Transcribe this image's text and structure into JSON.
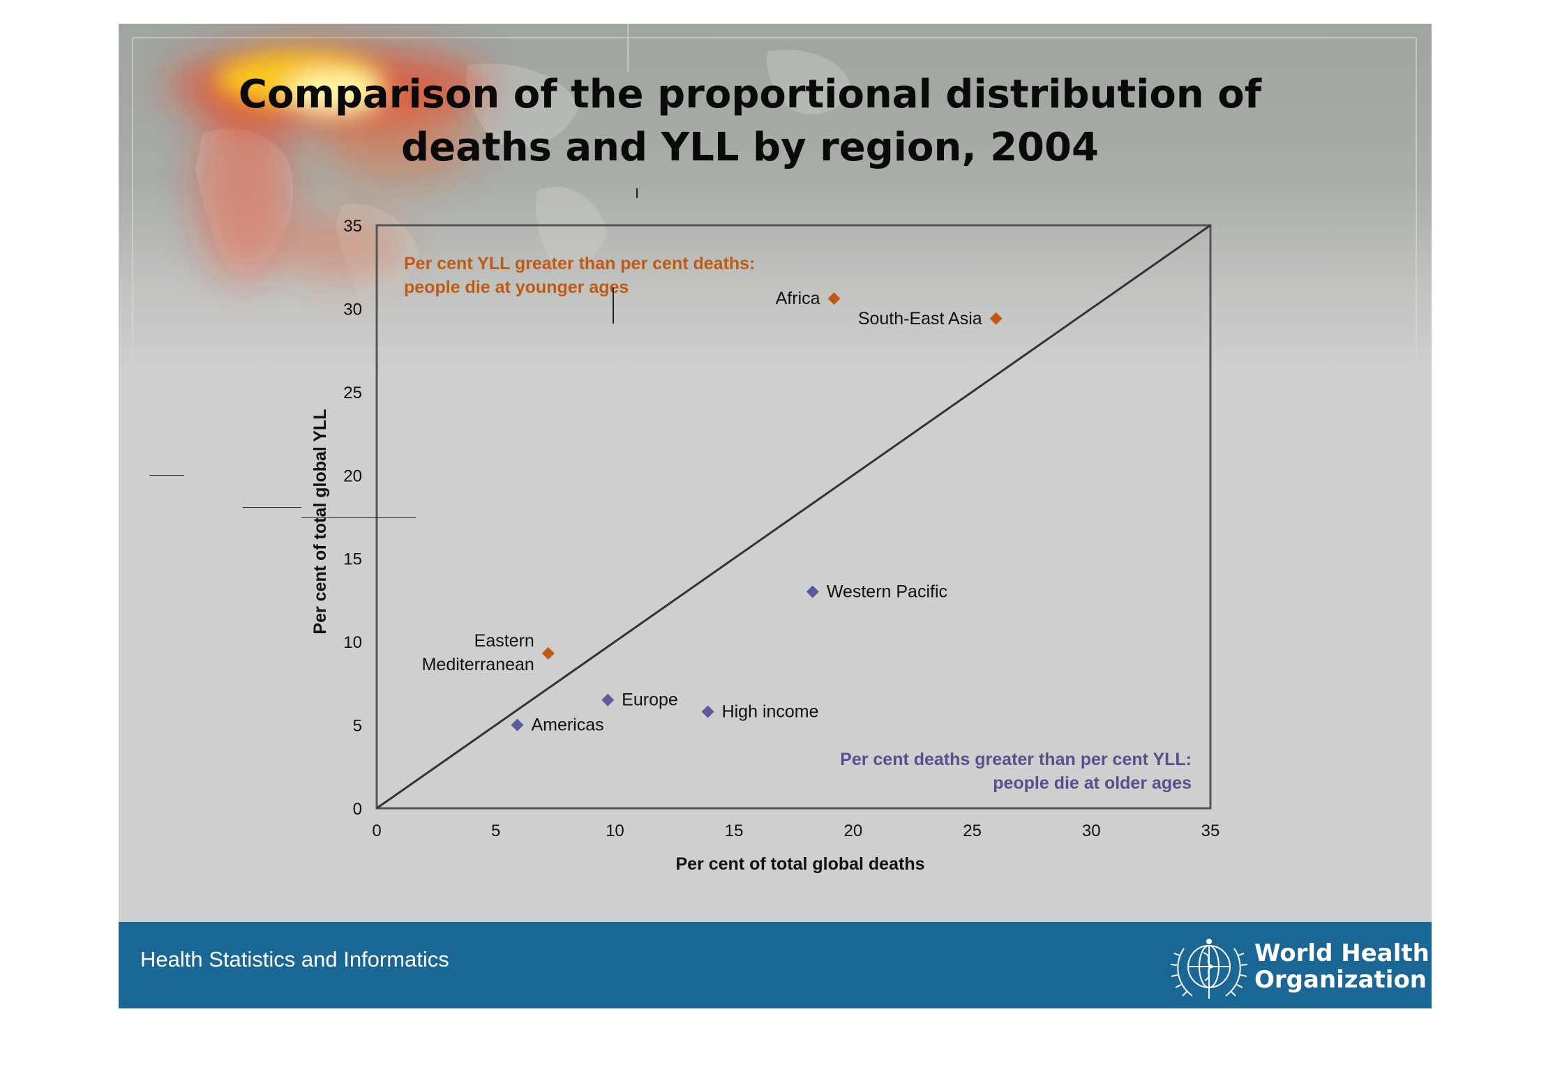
{
  "slide": {
    "title_line1": "Comparison of the proportional distribution of",
    "title_line2": "deaths and YLL by region, 2004",
    "background_color": "#cfcfcf"
  },
  "footer": {
    "text": "Health Statistics and Informatics",
    "org_line1": "World Health",
    "org_line2": "Organization",
    "logo_icon": "who-emblem-icon",
    "color": "#1a6795"
  },
  "chart_data": {
    "type": "scatter",
    "xlabel": "Per cent of total global deaths",
    "ylabel": "Per cent of total global YLL",
    "xlim": [
      0,
      35
    ],
    "ylim": [
      0,
      35
    ],
    "xticks": [
      0,
      5,
      10,
      15,
      20,
      25,
      30,
      35
    ],
    "yticks": [
      0,
      5,
      10,
      15,
      20,
      25,
      30,
      35
    ],
    "grid": false,
    "reference_line": {
      "from": [
        0,
        0
      ],
      "to": [
        35,
        35
      ]
    },
    "points": [
      {
        "name": "Africa",
        "x": 19.2,
        "y": 30.6,
        "group": "younger"
      },
      {
        "name": "South-East Asia",
        "x": 26.0,
        "y": 29.4,
        "group": "younger"
      },
      {
        "name": "Eastern Mediterranean",
        "label_lines": [
          "Eastern",
          "Mediterranean"
        ],
        "x": 7.2,
        "y": 9.3,
        "group": "younger"
      },
      {
        "name": "Western Pacific",
        "x": 18.3,
        "y": 13.0,
        "group": "older"
      },
      {
        "name": "Europe",
        "x": 9.7,
        "y": 6.5,
        "group": "older"
      },
      {
        "name": "High income",
        "x": 13.9,
        "y": 5.8,
        "group": "older"
      },
      {
        "name": "Americas",
        "x": 5.9,
        "y": 5.0,
        "group": "older"
      }
    ],
    "annotations": [
      {
        "lines": [
          "Per cent YLL greater than per cent deaths:",
          "people die at younger ages"
        ],
        "color": "#c05a12",
        "placement": "top-left"
      },
      {
        "lines": [
          "Per cent deaths greater than per cent YLL:",
          "people die at older ages"
        ],
        "color": "#5a4f8c",
        "placement": "bottom-right"
      }
    ],
    "colors": {
      "younger": "#c05a12",
      "older": "#5a5aa0",
      "axis": "#555555",
      "line": "#333333"
    }
  }
}
